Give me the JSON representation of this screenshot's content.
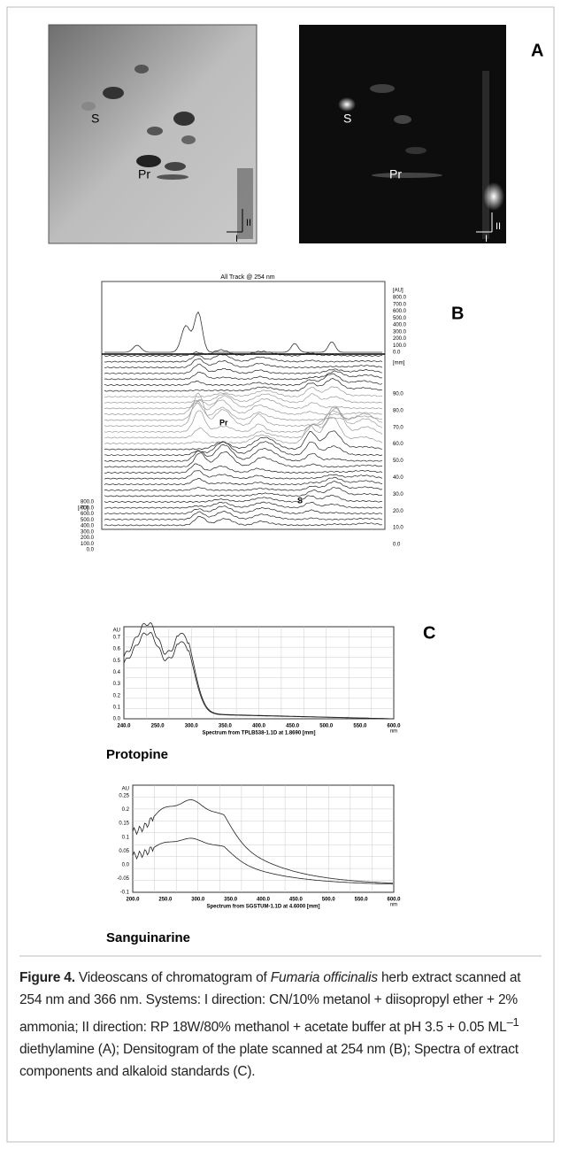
{
  "panels": {
    "a": {
      "label": "A",
      "left_plate": {
        "spots": [
          "S",
          "Pr"
        ],
        "directions": [
          "I",
          "II"
        ]
      },
      "right_plate": {
        "spots": [
          "S",
          "Pr"
        ],
        "directions": [
          "I",
          "II"
        ]
      }
    },
    "b": {
      "label": "B",
      "title": "All Track @ 254 nm",
      "right_top_axis": {
        "unit": "[AU]",
        "ticks": [
          "800.0",
          "700.0",
          "600.0",
          "500.0",
          "400.0",
          "300.0",
          "200.0",
          "100.0",
          "0.0"
        ]
      },
      "right_bottom_axis": {
        "unit": "[mm]",
        "ticks": [
          "90.0",
          "80.0",
          "70.0",
          "60.0",
          "50.0",
          "40.0",
          "30.0",
          "20.0",
          "10.0",
          "0.0"
        ]
      },
      "left_axis": {
        "unit": "[AU]",
        "ticks": [
          "800.0",
          "700.0",
          "600.0",
          "500.0",
          "400.0",
          "300.0",
          "200.0",
          "100.0",
          "0.0"
        ]
      },
      "peaks": [
        "Pr",
        "S"
      ]
    },
    "c": {
      "label": "C",
      "spectra": [
        {
          "name": "Protopine",
          "y_unit": "AU",
          "y_ticks": [
            "0.7",
            "0.6",
            "0.5",
            "0.4",
            "0.3",
            "0.2",
            "0.1",
            "0.0"
          ],
          "x_ticks": [
            "240.0",
            "250.0",
            "300.0",
            "350.0",
            "400.0",
            "450.0",
            "500.0",
            "550.0",
            "600.0"
          ],
          "x_unit": "nm",
          "x_label": "Spectrum from TPLB538-1.1D at 1.8690 [mm]"
        },
        {
          "name": "Sanguinarine",
          "y_unit": "AU",
          "y_ticks": [
            "0.25",
            "0.2",
            "0.15",
            "0.1",
            "0.05",
            "0.0",
            "-0.05",
            "-0.1"
          ],
          "x_ticks": [
            "200.0",
            "250.0",
            "300.0",
            "350.0",
            "400.0",
            "450.0",
            "500.0",
            "550.0",
            "600.0"
          ],
          "x_unit": "nm",
          "x_label": "Spectrum from SGSTUM-1.1D at 4.6000 [mm]"
        }
      ]
    }
  },
  "caption": {
    "label": "Figure 4.",
    "text_1": "Videoscans of chromatogram of",
    "species": "Fumaria officinalis",
    "text_2": "herb extract scanned at 254 nm and 366 nm. Systems: I direction: CN/10% metanol + diisopropyl ether + 2% ammonia; II direction: RP 18W/80% methanol + acetate buffer at pH 3.5 + 0.05 ML",
    "sup": "–1",
    "text_3": "diethylamine (A); Densitogram of the plate scanned at 254 nm (B); Spectra of extract components and alkaloid standards (C)."
  }
}
